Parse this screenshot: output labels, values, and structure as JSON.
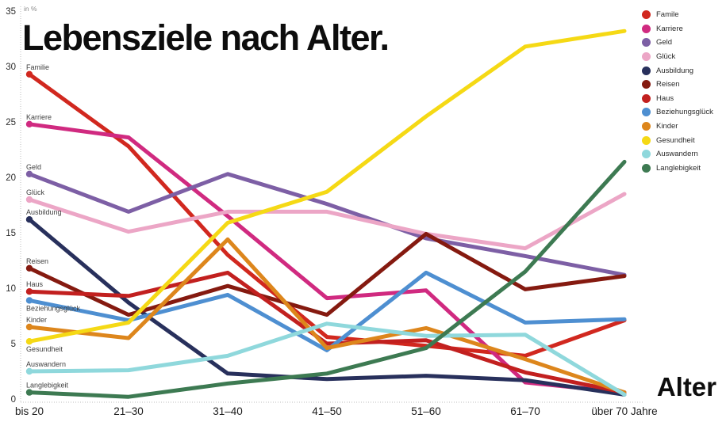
{
  "header": {
    "title": "Lebensziele nach Alter.",
    "unit_label": "in %",
    "x_axis_title": "Alter"
  },
  "legend": {
    "labels": [
      "Famile",
      "Karriere",
      "Geld",
      "Glück",
      "Ausbildung",
      "Reisen",
      "Haus",
      "Beziehungsglück",
      "Kinder",
      "Gesundheit",
      "Auswandern",
      "Langlebigkeit"
    ]
  },
  "chart_data": {
    "type": "line",
    "title": "Lebensziele nach Alter.",
    "ylabel": "in %",
    "xlabel": "Alter",
    "ylim": [
      0,
      35
    ],
    "yticks": [
      0,
      5,
      10,
      15,
      20,
      25,
      30,
      35
    ],
    "grid": "dotted axis lines only",
    "legend_position": "top-right",
    "categories": [
      "bis 20",
      "21–30",
      "31–40",
      "41–50",
      "51–60",
      "61–70",
      "über 70 Jahre"
    ],
    "series": [
      {
        "name": "Familie",
        "legend_label": "Famile",
        "color": "#d1281f",
        "label_side": "above",
        "values": [
          29.3,
          22.8,
          13.0,
          5.6,
          4.8,
          3.9,
          7.1
        ]
      },
      {
        "name": "Karriere",
        "legend_label": "Karriere",
        "color": "#d02a80",
        "label_side": "above",
        "values": [
          24.8,
          23.6,
          16.5,
          9.1,
          9.8,
          1.5,
          0.6
        ]
      },
      {
        "name": "Geld",
        "legend_label": "Geld",
        "color": "#7d5fa5",
        "label_side": "above",
        "values": [
          20.3,
          16.9,
          20.3,
          17.6,
          14.5,
          12.9,
          11.2
        ]
      },
      {
        "name": "Glück",
        "legend_label": "Glück",
        "color": "#eca6c6",
        "label_side": "above",
        "values": [
          18.0,
          15.1,
          16.9,
          16.9,
          14.9,
          13.6,
          18.5
        ]
      },
      {
        "name": "Ausbildung",
        "legend_label": "Ausbildung",
        "color": "#28305c",
        "label_side": "above",
        "values": [
          16.2,
          8.7,
          2.3,
          1.8,
          2.1,
          1.7,
          0.4
        ]
      },
      {
        "name": "Reisen",
        "legend_label": "Reisen",
        "color": "#851a10",
        "label_side": "above",
        "values": [
          11.8,
          7.6,
          10.2,
          7.6,
          14.9,
          9.9,
          11.1
        ]
      },
      {
        "name": "Haus",
        "legend_label": "Haus",
        "color": "#c2201f",
        "label_side": "above",
        "values": [
          9.7,
          9.3,
          11.4,
          5.0,
          5.3,
          2.4,
          0.6
        ]
      },
      {
        "name": "Beziehungsglück",
        "legend_label": "Beziehungsglück",
        "color": "#4e8fd1",
        "label_side": "below",
        "values": [
          8.9,
          7.1,
          9.4,
          4.4,
          11.4,
          6.9,
          7.2
        ]
      },
      {
        "name": "Kinder",
        "legend_label": "Kinder",
        "color": "#dd861c",
        "label_side": "above",
        "values": [
          6.5,
          5.5,
          14.4,
          4.6,
          6.4,
          3.6,
          0.6
        ]
      },
      {
        "name": "Gesundheit",
        "legend_label": "Gesundheit",
        "color": "#f5d915",
        "label_side": "below",
        "values": [
          5.2,
          6.9,
          15.9,
          18.7,
          25.5,
          31.8,
          33.2
        ]
      },
      {
        "name": "Auswandern",
        "legend_label": "Auswandern",
        "color": "#8fd8dc",
        "label_side": "above",
        "values": [
          2.5,
          2.6,
          3.9,
          6.8,
          5.7,
          5.8,
          0.4
        ]
      },
      {
        "name": "Langlebigkeit",
        "legend_label": "Langlebigkeit",
        "color": "#3d7a52",
        "label_side": "above",
        "values": [
          0.6,
          0.2,
          1.4,
          2.3,
          4.6,
          11.5,
          21.4
        ]
      }
    ]
  }
}
